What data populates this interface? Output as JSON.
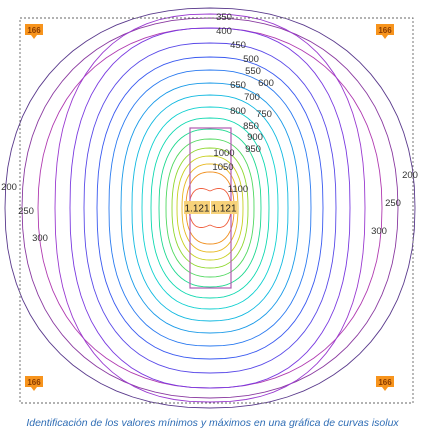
{
  "caption": "Identificación de los valores mínimos y máximos en una gráfica de curvas isolux",
  "corner_value": "166",
  "max_value": "1.121",
  "levels": [
    {
      "value": 200,
      "label": "200",
      "color": "#5a3a8c"
    },
    {
      "value": 250,
      "label": "250",
      "color": "#8a3aa0"
    },
    {
      "value": 300,
      "label": "300",
      "color": "#b03ab0"
    },
    {
      "value": 350,
      "label": "350",
      "color": "#9a3ad0"
    },
    {
      "value": 400,
      "label": "400",
      "color": "#7a3ae0"
    },
    {
      "value": 450,
      "label": "450",
      "color": "#5a4ae8"
    },
    {
      "value": 500,
      "label": "500",
      "color": "#3a5af0"
    },
    {
      "value": 550,
      "label": "550",
      "color": "#2a7af0"
    },
    {
      "value": 600,
      "label": "600",
      "color": "#1a9ae8"
    },
    {
      "value": 650,
      "label": "650",
      "color": "#10b8e0"
    },
    {
      "value": 700,
      "label": "700",
      "color": "#10d0d0"
    },
    {
      "value": 750,
      "label": "750",
      "color": "#10d8b0"
    },
    {
      "value": 800,
      "label": "800",
      "color": "#20d890"
    },
    {
      "value": 850,
      "label": "850",
      "color": "#50d860"
    },
    {
      "value": 900,
      "label": "900",
      "color": "#90d830"
    },
    {
      "value": 950,
      "label": "950",
      "color": "#c8d020"
    },
    {
      "value": 1000,
      "label": "1000",
      "color": "#e8b820"
    },
    {
      "value": 1050,
      "label": "1050",
      "color": "#f09020"
    },
    {
      "value": 1100,
      "label": "1100",
      "color": "#f06040"
    }
  ],
  "colors": {
    "frame": "#666666",
    "room": "#b05ab0",
    "badge_fill": "#f7941d",
    "peak_fill": "#f7d27a"
  }
}
